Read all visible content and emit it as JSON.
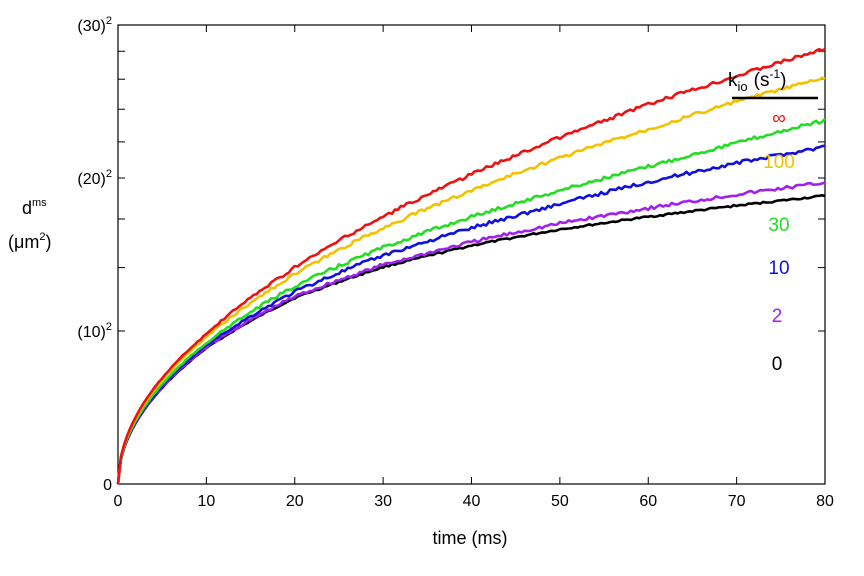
{
  "chart_data": {
    "type": "line",
    "xlabel": "time (ms)",
    "ylabel_main": "d",
    "ylabel_sup": "ms",
    "ylabel_unit_open": "(",
    "ylabel_unit_mu": "μm",
    "ylabel_unit_sup": "2",
    "ylabel_unit_close": ")",
    "xlim": [
      0,
      80
    ],
    "ylim": [
      0,
      900
    ],
    "x_ticks": [
      "0",
      "10",
      "20",
      "30",
      "40",
      "50",
      "60",
      "70",
      "80"
    ],
    "y_ticks": [
      {
        "base": "0",
        "sup": "",
        "value": 0
      },
      {
        "base": "(10)",
        "sup": "2",
        "value": 100
      },
      {
        "base": "(20)",
        "sup": "2",
        "value": 400
      },
      {
        "base": "(30)",
        "sup": "2",
        "value": 900
      }
    ],
    "y_minor_ticks": [
      200,
      300,
      500,
      600,
      700,
      800
    ],
    "grid": false,
    "legend": {
      "title_main": "k",
      "title_sub": "io",
      "title_unit_open": "(s",
      "title_unit_sup": "-1",
      "title_unit_close": ")",
      "placement": "right"
    },
    "x": [
      0,
      10,
      20,
      30,
      40,
      50,
      60,
      70,
      80
    ],
    "series": [
      {
        "name": "∞",
        "color": "#ee1111",
        "values": [
          0,
          96,
          200,
          305,
          410,
          513,
          615,
          712,
          810
        ]
      },
      {
        "name": "100",
        "color": "#f2c200",
        "values": [
          0,
          92,
          188,
          280,
          368,
          455,
          538,
          625,
          705
        ]
      },
      {
        "name": "30",
        "color": "#22dd22",
        "values": [
          0,
          85,
          167,
          239,
          305,
          368,
          430,
          497,
          565
        ]
      },
      {
        "name": "10",
        "color": "#1010dd",
        "values": [
          0,
          82,
          158,
          223,
          280,
          335,
          390,
          440,
          486
        ]
      },
      {
        "name": "2",
        "color": "#a020f0",
        "values": [
          0,
          80,
          150,
          205,
          250,
          290,
          325,
          358,
          388
        ]
      },
      {
        "name": "0",
        "color": "#000000",
        "values": [
          0,
          79,
          148,
          201,
          243,
          277,
          305,
          331,
          355
        ]
      }
    ]
  }
}
